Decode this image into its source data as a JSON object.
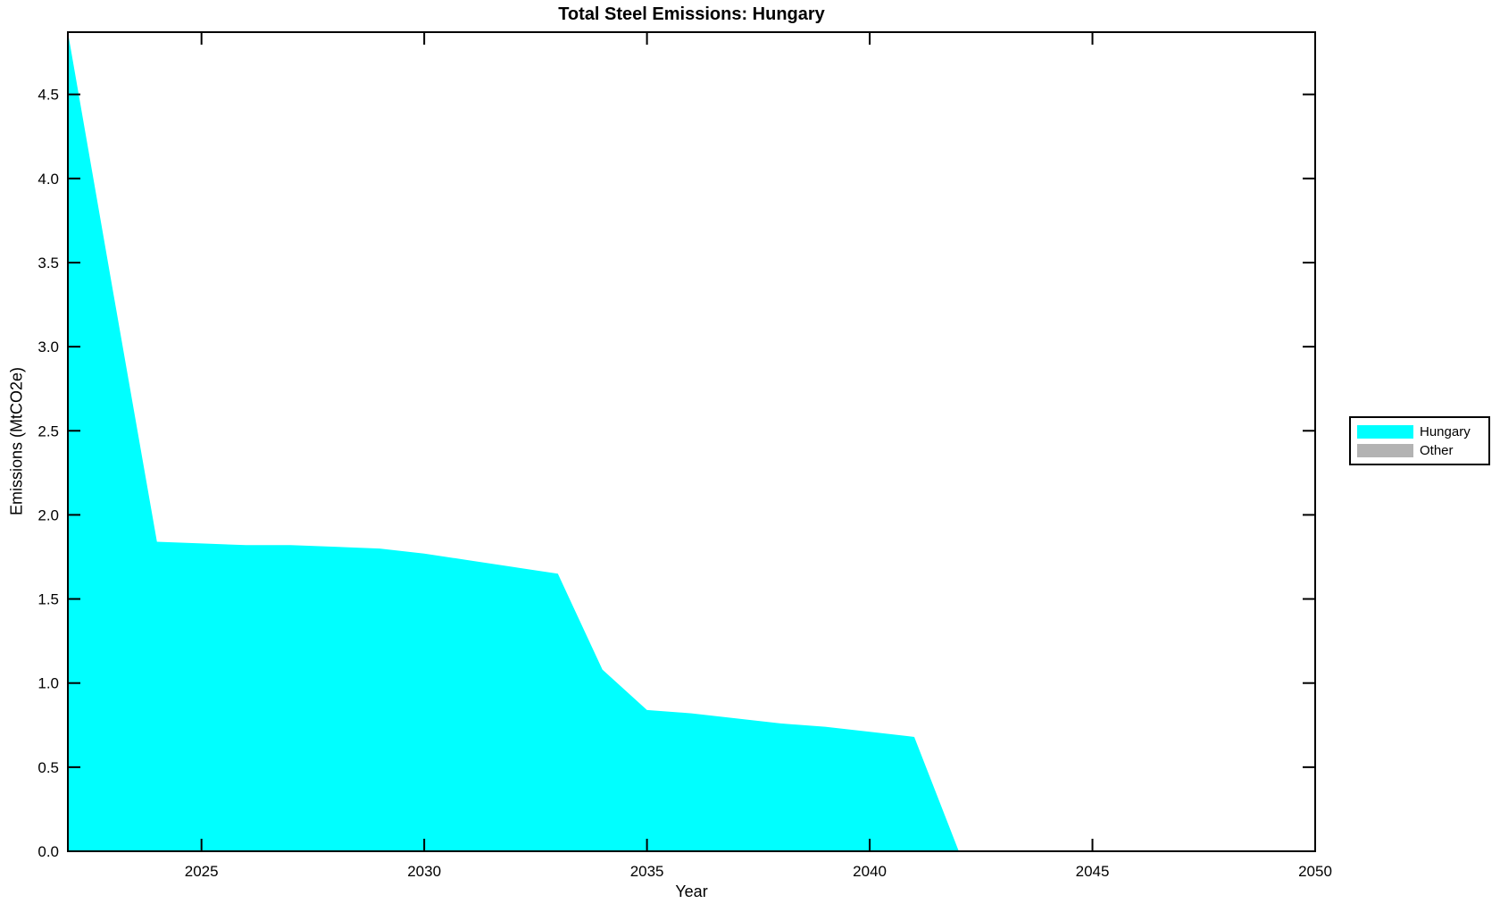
{
  "figure": {
    "title": "Total Steel Emissions: Hungary",
    "xlabel": "Year",
    "ylabel": "Emissions (MtCO2e)"
  },
  "legend": {
    "position": "outside-right",
    "items": [
      {
        "label": "Hungary",
        "color": "#00ffff"
      },
      {
        "label": "Other",
        "color": "#b3b3b3"
      }
    ]
  },
  "chart_data": {
    "type": "area",
    "stacked": true,
    "title": "Total Steel Emissions: Hungary",
    "xlabel": "Year",
    "ylabel": "Emissions (MtCO2e)",
    "x": [
      2022,
      2023,
      2024,
      2025,
      2026,
      2027,
      2028,
      2029,
      2030,
      2031,
      2032,
      2033,
      2034,
      2035,
      2036,
      2037,
      2038,
      2039,
      2040,
      2041,
      2042,
      2043,
      2044,
      2045,
      2046,
      2047,
      2048,
      2049,
      2050
    ],
    "series": [
      {
        "name": "Hungary",
        "color": "#00ffff",
        "values": [
          4.87,
          3.35,
          1.84,
          1.83,
          1.82,
          1.82,
          1.81,
          1.8,
          1.77,
          1.73,
          1.69,
          1.65,
          1.08,
          0.84,
          0.82,
          0.79,
          0.76,
          0.74,
          0.71,
          0.68,
          0.0,
          0.0,
          0.0,
          0.0,
          0.0,
          0.0,
          0.0,
          0.0,
          0.0
        ]
      },
      {
        "name": "Other",
        "color": "#b3b3b3",
        "values": [
          0.0,
          0.0,
          0.0,
          0.0,
          0.0,
          0.0,
          0.0,
          0.0,
          0.0,
          0.0,
          0.0,
          0.0,
          0.0,
          0.0,
          0.0,
          0.0,
          0.0,
          0.0,
          0.0,
          0.0,
          0.0,
          0.0,
          0.0,
          0.0,
          0.0,
          0.0,
          0.0,
          0.0,
          0.0
        ]
      }
    ],
    "xlim": [
      2022,
      2050
    ],
    "ylim": [
      0,
      4.87
    ],
    "xticks": [
      2025,
      2030,
      2035,
      2040,
      2045,
      2050
    ],
    "ytick_labels": [
      "0.0",
      "0.5",
      "1.0",
      "1.5",
      "2.0",
      "2.5",
      "3.0",
      "3.5",
      "4.0",
      "4.5"
    ],
    "grid": false,
    "box": true,
    "tick_style": "inward-all-sides",
    "axis_color": "#000000",
    "background": "#ffffff"
  }
}
